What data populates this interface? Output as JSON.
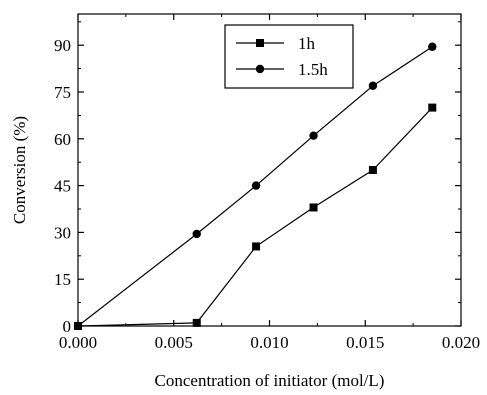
{
  "chart_data": {
    "type": "line",
    "title": "",
    "xlabel": "Concentration of initiator (mol/L)",
    "ylabel": "Conversion (%)",
    "xlim": [
      0.0,
      0.02
    ],
    "ylim": [
      0,
      100
    ],
    "x_ticks": [
      "0.000",
      "0.005",
      "0.010",
      "0.015",
      "0.020"
    ],
    "x_tick_values": [
      0.0,
      0.005,
      0.01,
      0.015,
      0.02
    ],
    "y_ticks": [
      "0",
      "15",
      "30",
      "45",
      "60",
      "75",
      "90"
    ],
    "y_tick_values": [
      0,
      15,
      30,
      45,
      60,
      75,
      90
    ],
    "grid": false,
    "legend": "top-center",
    "series": [
      {
        "name": "1h",
        "marker": "square",
        "color": "#000000",
        "x": [
          0.0,
          0.0062,
          0.0093,
          0.0123,
          0.0154,
          0.0185
        ],
        "y": [
          0.0,
          1.0,
          25.5,
          38.0,
          50.0,
          70.0
        ]
      },
      {
        "name": "1.5h",
        "marker": "circle",
        "color": "#000000",
        "x": [
          0.0,
          0.0062,
          0.0093,
          0.0123,
          0.0154,
          0.0185
        ],
        "y": [
          0.0,
          29.5,
          45.0,
          61.0,
          77.0,
          89.5
        ]
      }
    ]
  }
}
